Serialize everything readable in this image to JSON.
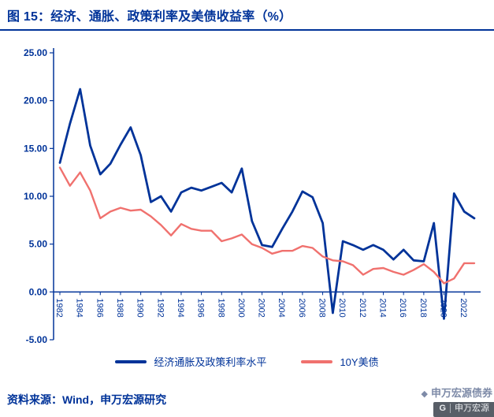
{
  "header": {
    "title": "图 15：经济、通胀、政策利率及美债收益率（%）"
  },
  "footer": {
    "source": "资料来源：Wind，申万宏源研究"
  },
  "watermark": {
    "line1": "申万宏源债券",
    "logo_mark": "G",
    "logo_text": "申万宏源"
  },
  "colors": {
    "navy": "#003399",
    "red": "#F0716E"
  },
  "chart_data": {
    "type": "line",
    "title": "经济、通胀、政策利率及美债收益率（%）",
    "xlabel": "",
    "ylabel": "",
    "ylim": [
      -5,
      25
    ],
    "ytick_step": 5,
    "grid": false,
    "legend_position": "bottom",
    "x": [
      1982,
      1983,
      1984,
      1985,
      1986,
      1987,
      1988,
      1989,
      1990,
      1991,
      1992,
      1993,
      1994,
      1995,
      1996,
      1997,
      1998,
      1999,
      2000,
      2001,
      2002,
      2003,
      2004,
      2005,
      2006,
      2007,
      2008,
      2009,
      2010,
      2011,
      2012,
      2013,
      2014,
      2015,
      2016,
      2017,
      2018,
      2019,
      2020,
      2021,
      2022,
      2023
    ],
    "xticks": [
      1982,
      1984,
      1986,
      1988,
      1990,
      1992,
      1994,
      1996,
      1998,
      2000,
      2002,
      2004,
      2006,
      2008,
      2010,
      2012,
      2014,
      2016,
      2018,
      2020,
      2022
    ],
    "series": [
      {
        "name": "经济通胀及政策利率水平",
        "color": "#003399",
        "values": [
          13.5,
          17.6,
          21.2,
          15.3,
          12.3,
          13.4,
          15.4,
          17.2,
          14.3,
          9.4,
          10.0,
          8.4,
          10.4,
          10.9,
          10.6,
          11.0,
          11.4,
          10.4,
          12.9,
          7.4,
          4.9,
          4.7,
          6.6,
          8.4,
          10.5,
          9.9,
          7.2,
          -2.2,
          5.3,
          4.9,
          4.4,
          4.9,
          4.4,
          3.4,
          4.4,
          3.3,
          3.2,
          7.2,
          -2.8,
          10.3,
          8.4,
          7.7
        ]
      },
      {
        "name": "10Y美债",
        "color": "#F0716E",
        "values": [
          13.0,
          11.1,
          12.5,
          10.6,
          7.7,
          8.4,
          8.8,
          8.5,
          8.6,
          7.9,
          7.0,
          5.9,
          7.1,
          6.6,
          6.4,
          6.4,
          5.3,
          5.6,
          6.0,
          5.0,
          4.6,
          4.0,
          4.3,
          4.3,
          4.8,
          4.6,
          3.7,
          3.3,
          3.2,
          2.8,
          1.8,
          2.4,
          2.5,
          2.1,
          1.8,
          2.3,
          2.9,
          2.1,
          0.9,
          1.4,
          3.0,
          3.0
        ]
      }
    ]
  }
}
